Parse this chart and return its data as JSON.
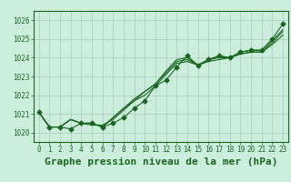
{
  "title": "Graphe pression niveau de la mer (hPa)",
  "background_color": "#cceedd",
  "grid_color": "#aaccbb",
  "line_color": "#1a6620",
  "xlim": [
    -0.5,
    23.5
  ],
  "ylim": [
    1019.5,
    1026.5
  ],
  "yticks": [
    1020,
    1021,
    1022,
    1023,
    1024,
    1025,
    1026
  ],
  "xticks": [
    0,
    1,
    2,
    3,
    4,
    5,
    6,
    7,
    8,
    9,
    10,
    11,
    12,
    13,
    14,
    15,
    16,
    17,
    18,
    19,
    20,
    21,
    22,
    23
  ],
  "series": [
    [
      1021.1,
      1020.3,
      1020.3,
      1020.2,
      1020.5,
      1020.5,
      1020.3,
      1020.5,
      1020.8,
      1021.3,
      1021.7,
      1022.5,
      1022.8,
      1023.5,
      1024.1,
      1023.6,
      1023.9,
      1024.1,
      1024.0,
      1024.3,
      1024.4,
      1024.4,
      1025.0,
      1025.8
    ],
    [
      1021.1,
      1020.3,
      1020.3,
      1020.7,
      1020.5,
      1020.5,
      1020.3,
      1020.8,
      1021.3,
      1021.7,
      1022.2,
      1022.6,
      1023.3,
      1023.9,
      1024.0,
      1023.6,
      1023.9,
      1024.1,
      1024.0,
      1024.3,
      1024.4,
      1024.4,
      1024.9,
      1025.5
    ],
    [
      1021.1,
      1020.3,
      1020.3,
      1020.7,
      1020.5,
      1020.5,
      1020.3,
      1020.8,
      1021.3,
      1021.8,
      1022.2,
      1022.6,
      1023.2,
      1023.8,
      1023.9,
      1023.6,
      1023.9,
      1024.0,
      1024.0,
      1024.2,
      1024.3,
      1024.3,
      1024.8,
      1025.4
    ],
    [
      1021.1,
      1020.3,
      1020.3,
      1020.7,
      1020.5,
      1020.4,
      1020.4,
      1020.7,
      1021.2,
      1021.7,
      1022.0,
      1022.5,
      1023.1,
      1023.7,
      1023.8,
      1023.6,
      1023.8,
      1023.9,
      1024.0,
      1024.2,
      1024.3,
      1024.3,
      1024.7,
      1025.2
    ]
  ],
  "marker_style": "D",
  "marker_size": 2.5,
  "title_fontsize": 8,
  "tick_fontsize": 5.5
}
